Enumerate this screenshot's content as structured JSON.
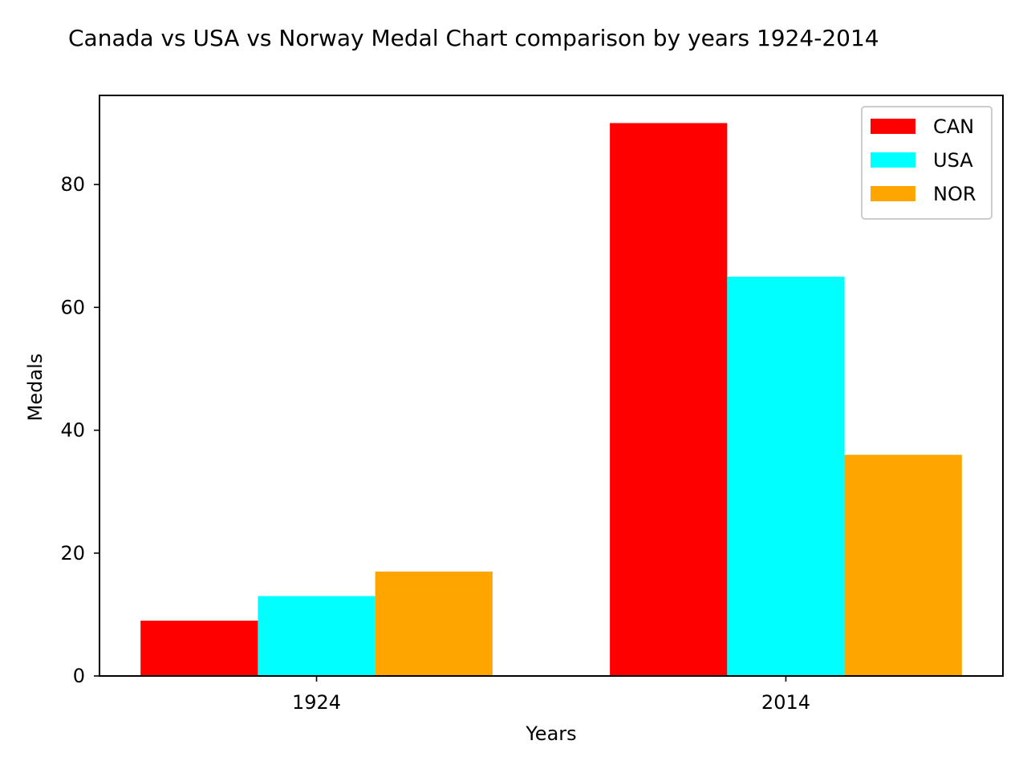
{
  "chart_data": {
    "type": "bar",
    "title": "Canada vs USA vs Norway Medal Chart comparison by years 1924-2014",
    "xlabel": "Years",
    "ylabel": "Medals",
    "categories": [
      "1924",
      "2014"
    ],
    "series": [
      {
        "name": "CAN",
        "values": [
          9,
          90
        ],
        "color": "#ff0000"
      },
      {
        "name": "USA",
        "values": [
          13,
          65
        ],
        "color": "#00ffff"
      },
      {
        "name": "NOR",
        "values": [
          17,
          36
        ],
        "color": "#ffa500"
      }
    ],
    "ylim": [
      0,
      94.5
    ],
    "yticks": [
      0,
      20,
      40,
      60,
      80
    ],
    "grid": false,
    "legend_position": "top-right"
  }
}
